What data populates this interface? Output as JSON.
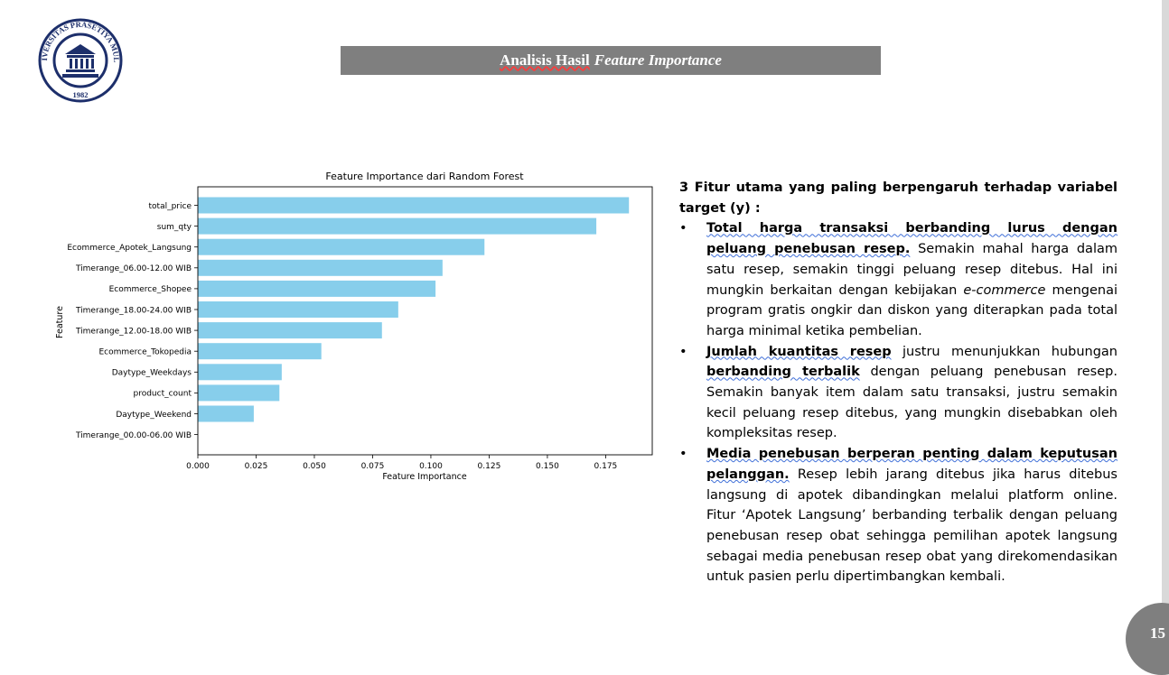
{
  "logo": {
    "top_text": "UNIVERSITAS PRASETIYA MULYA",
    "year": "1982"
  },
  "slide_title": {
    "plain": "Analisis Hasil",
    "italic": "Feature Importance"
  },
  "chart_data": {
    "type": "bar",
    "orientation": "horizontal",
    "title": "Feature Importance dari Random Forest",
    "xlabel": "Feature Importance",
    "ylabel": "Feature",
    "categories": [
      "total_price",
      "sum_qty",
      "Ecommerce_Apotek_Langsung",
      "Timerange_06.00-12.00 WIB",
      "Ecommerce_Shopee",
      "Timerange_18.00-24.00 WIB",
      "Timerange_12.00-18.00 WIB",
      "Ecommerce_Tokopedia",
      "Daytype_Weekdays",
      "product_count",
      "Daytype_Weekend",
      "Timerange_00.00-06.00 WIB"
    ],
    "values": [
      0.185,
      0.171,
      0.123,
      0.105,
      0.102,
      0.086,
      0.079,
      0.053,
      0.036,
      0.035,
      0.024,
      0.0
    ],
    "xlim": [
      0,
      0.195
    ],
    "xticks": [
      "0.000",
      "0.025",
      "0.050",
      "0.075",
      "0.100",
      "0.125",
      "0.150",
      "0.175"
    ],
    "bar_color": "#87ceeb",
    "grid": false
  },
  "text": {
    "intro": "3 Fitur utama yang paling  berpengaruh terhadap variabel target (y) :",
    "b1_bold": "Total harga transaksi berbanding lurus dengan peluang penebusan resep.",
    "b1_pre": " Semakin mahal harga dalam satu resep, semakin tinggi peluang resep ditebus. Hal ini mungkin berkaitan dengan kebijakan ",
    "b1_ital": "e-commerce",
    "b1_post": " mengenai program gratis ongkir dan diskon yang diterapkan pada total harga minimal ketika pembelian.",
    "b2_bold1": "Jumlah kuantitas resep",
    "b2_mid": " justru menunjukkan hubungan ",
    "b2_bold2": "berbanding terbalik",
    "b2_post": " dengan peluang penebusan resep. Semakin banyak item dalam satu transaksi, justru semakin kecil peluang resep ditebus, yang mungkin disebabkan oleh kompleksitas resep.",
    "b3_bold": "Media penebusan berperan penting dalam keputusan pelanggan.",
    "b3_post": " Resep lebih jarang ditebus jika harus ditebus langsung di apotek dibandingkan melalui platform online. Fitur ‘Apotek Langsung’ berbanding terbalik dengan peluang penebusan resep obat sehingga pemilihan apotek langsung sebagai media penebusan resep obat yang direkomendasikan untuk pasien perlu dipertimbangkan kembali."
  },
  "page_number": "15"
}
